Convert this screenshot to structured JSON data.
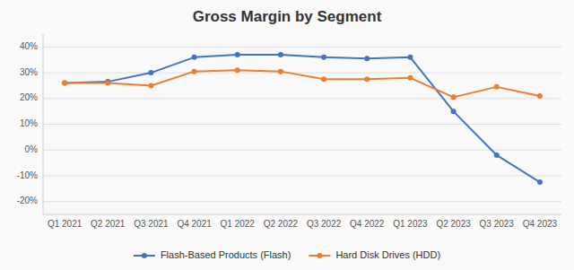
{
  "chart_data": {
    "type": "line",
    "title": "Gross Margin by Segment",
    "categories": [
      "Q1 2021",
      "Q2 2021",
      "Q3 2021",
      "Q4 2021",
      "Q1 2022",
      "Q2 2022",
      "Q3 2022",
      "Q4 2022",
      "Q1 2023",
      "Q2 2023",
      "Q3 2023",
      "Q4 2023"
    ],
    "series": [
      {
        "name": "Flash-Based Products (Flash)",
        "color": "#4472C4",
        "values": [
          26,
          26.5,
          30,
          36,
          37,
          37,
          36,
          35.5,
          36,
          15,
          -2,
          -12.5
        ]
      },
      {
        "name": "Hard Disk Drives (HDD)",
        "color": "#ED7D31",
        "values": [
          26,
          26,
          25,
          30.5,
          31,
          30.5,
          27.5,
          27.5,
          28,
          20.5,
          24.5,
          21
        ]
      }
    ],
    "ylim": [
      -25,
      45
    ],
    "yticks": [
      {
        "value": -20,
        "label": "-20%"
      },
      {
        "value": -10,
        "label": "-10%"
      },
      {
        "value": 0,
        "label": "0%"
      },
      {
        "value": 10,
        "label": "10%"
      },
      {
        "value": 20,
        "label": "20%"
      },
      {
        "value": 30,
        "label": "30%"
      },
      {
        "value": 40,
        "label": "40%"
      }
    ],
    "grid": true,
    "legend": "bottom",
    "marker": "circle"
  }
}
